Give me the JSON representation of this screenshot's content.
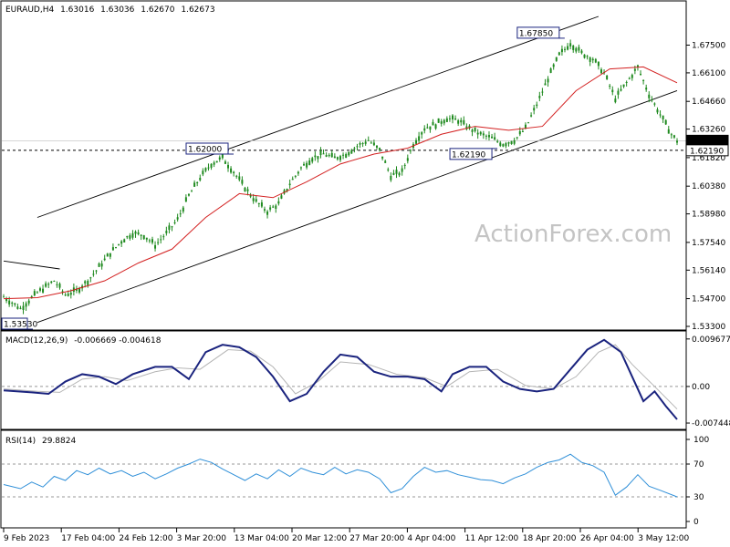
{
  "header": {
    "symbol": "EURAUD,H4",
    "open": "1.63016",
    "high": "1.63036",
    "low": "1.62670",
    "close": "1.62673"
  },
  "watermark": "ActionForex.com",
  "colors": {
    "candle": "#1f8a1f",
    "ma": "#d32020",
    "macd": "#1a237e",
    "macd_signal": "#b5b5b5",
    "rsi": "#2f8fd8",
    "channel": "#000000",
    "price_box": "#1a237e"
  },
  "chart_data": [
    {
      "type": "candlestick",
      "series_name": "EURAUD,H4",
      "ylim": [
        1.533,
        1.6895
      ],
      "y_ticks": [
        "1.67500",
        "1.66100",
        "1.64660",
        "1.63260",
        "1.61820",
        "1.60380",
        "1.58980",
        "1.57540",
        "1.56140",
        "1.54700",
        "1.53300"
      ],
      "x_ticks": [
        "9 Feb 2023",
        "17 Feb 04:00",
        "24 Feb 12:00",
        "3 Mar 20:00",
        "13 Mar 04:00",
        "20 Mar 12:00",
        "27 Mar 20:00",
        "4 Apr 04:00",
        "11 Apr 12:00",
        "18 Apr 20:00",
        "26 Apr 04:00",
        "3 May 12:00"
      ],
      "current_price": "1.62673",
      "support_line": "1.62190",
      "annotations": [
        "1.67850",
        "1.62000",
        "1.62190",
        "1.53530"
      ],
      "close_path": [
        {
          "x": 0,
          "y": 1.548
        },
        {
          "x": 3,
          "y": 1.542
        },
        {
          "x": 6,
          "y": 1.55
        },
        {
          "x": 9,
          "y": 1.556
        },
        {
          "x": 11,
          "y": 1.549
        },
        {
          "x": 13,
          "y": 1.551
        },
        {
          "x": 15,
          "y": 1.556
        },
        {
          "x": 17,
          "y": 1.563
        },
        {
          "x": 19,
          "y": 1.57
        },
        {
          "x": 21,
          "y": 1.576
        },
        {
          "x": 23,
          "y": 1.58
        },
        {
          "x": 25,
          "y": 1.579
        },
        {
          "x": 27,
          "y": 1.574
        },
        {
          "x": 29,
          "y": 1.58
        },
        {
          "x": 31,
          "y": 1.587
        },
        {
          "x": 33,
          "y": 1.599
        },
        {
          "x": 35,
          "y": 1.608
        },
        {
          "x": 37,
          "y": 1.615
        },
        {
          "x": 39,
          "y": 1.618
        },
        {
          "x": 41,
          "y": 1.611
        },
        {
          "x": 43,
          "y": 1.603
        },
        {
          "x": 45,
          "y": 1.596
        },
        {
          "x": 47,
          "y": 1.591
        },
        {
          "x": 49,
          "y": 1.595
        },
        {
          "x": 51,
          "y": 1.605
        },
        {
          "x": 53,
          "y": 1.613
        },
        {
          "x": 55,
          "y": 1.618
        },
        {
          "x": 57,
          "y": 1.62
        },
        {
          "x": 59,
          "y": 1.618
        },
        {
          "x": 61,
          "y": 1.62
        },
        {
          "x": 63,
          "y": 1.624
        },
        {
          "x": 65,
          "y": 1.627
        },
        {
          "x": 67,
          "y": 1.622
        },
        {
          "x": 69,
          "y": 1.609
        },
        {
          "x": 71,
          "y": 1.611
        },
        {
          "x": 73,
          "y": 1.625
        },
        {
          "x": 75,
          "y": 1.633
        },
        {
          "x": 77,
          "y": 1.635
        },
        {
          "x": 79,
          "y": 1.638
        },
        {
          "x": 81,
          "y": 1.637
        },
        {
          "x": 83,
          "y": 1.633
        },
        {
          "x": 85,
          "y": 1.63
        },
        {
          "x": 87,
          "y": 1.628
        },
        {
          "x": 89,
          "y": 1.625
        },
        {
          "x": 91,
          "y": 1.627
        },
        {
          "x": 93,
          "y": 1.633
        },
        {
          "x": 95,
          "y": 1.645
        },
        {
          "x": 97,
          "y": 1.658
        },
        {
          "x": 99,
          "y": 1.67
        },
        {
          "x": 101,
          "y": 1.676
        },
        {
          "x": 103,
          "y": 1.671
        },
        {
          "x": 105,
          "y": 1.668
        },
        {
          "x": 107,
          "y": 1.661
        },
        {
          "x": 109,
          "y": 1.648
        },
        {
          "x": 111,
          "y": 1.656
        },
        {
          "x": 113,
          "y": 1.664
        },
        {
          "x": 115,
          "y": 1.65
        },
        {
          "x": 117,
          "y": 1.64
        },
        {
          "x": 119,
          "y": 1.63
        },
        {
          "x": 120,
          "y": 1.6267
        }
      ],
      "ma_path": [
        {
          "x": 0,
          "y": 1.547
        },
        {
          "x": 6,
          "y": 1.5475
        },
        {
          "x": 12,
          "y": 1.551
        },
        {
          "x": 18,
          "y": 1.556
        },
        {
          "x": 24,
          "y": 1.565
        },
        {
          "x": 30,
          "y": 1.572
        },
        {
          "x": 36,
          "y": 1.588
        },
        {
          "x": 42,
          "y": 1.6
        },
        {
          "x": 48,
          "y": 1.598
        },
        {
          "x": 54,
          "y": 1.606
        },
        {
          "x": 60,
          "y": 1.615
        },
        {
          "x": 66,
          "y": 1.62
        },
        {
          "x": 72,
          "y": 1.623
        },
        {
          "x": 78,
          "y": 1.63
        },
        {
          "x": 84,
          "y": 1.634
        },
        {
          "x": 90,
          "y": 1.632
        },
        {
          "x": 96,
          "y": 1.634
        },
        {
          "x": 102,
          "y": 1.652
        },
        {
          "x": 108,
          "y": 1.663
        },
        {
          "x": 114,
          "y": 1.664
        },
        {
          "x": 120,
          "y": 1.656
        }
      ],
      "channel_upper": [
        {
          "x": 6,
          "y": 1.588
        },
        {
          "x": 106,
          "y": 1.6895
        }
      ],
      "channel_lower": [
        {
          "x": 6,
          "y": 1.535
        },
        {
          "x": 120,
          "y": 1.652
        }
      ],
      "trendline_left": [
        {
          "x": 0,
          "y": 1.566
        },
        {
          "x": 10,
          "y": 1.562
        }
      ]
    },
    {
      "type": "line",
      "indicator": "MACD(12,26,9)",
      "values_label": "-0.006669 -0.004618",
      "ylim": [
        -0.008,
        0.0102
      ],
      "y_ticks": [
        "0.009677",
        "0.00",
        "-0.007448"
      ],
      "series": [
        {
          "name": "MACD(12,26,9)",
          "points": [
            {
              "x": 0,
              "y": -0.0008
            },
            {
              "x": 5,
              "y": -0.0012
            },
            {
              "x": 8,
              "y": -0.0015
            },
            {
              "x": 11,
              "y": 0.001
            },
            {
              "x": 14,
              "y": 0.0025
            },
            {
              "x": 17,
              "y": 0.002
            },
            {
              "x": 20,
              "y": 0.0005
            },
            {
              "x": 23,
              "y": 0.0025
            },
            {
              "x": 27,
              "y": 0.004
            },
            {
              "x": 30,
              "y": 0.004
            },
            {
              "x": 33,
              "y": 0.0015
            },
            {
              "x": 36,
              "y": 0.007
            },
            {
              "x": 39,
              "y": 0.0085
            },
            {
              "x": 42,
              "y": 0.008
            },
            {
              "x": 45,
              "y": 0.006
            },
            {
              "x": 48,
              "y": 0.002
            },
            {
              "x": 51,
              "y": -0.003
            },
            {
              "x": 54,
              "y": -0.0015
            },
            {
              "x": 57,
              "y": 0.003
            },
            {
              "x": 60,
              "y": 0.0065
            },
            {
              "x": 63,
              "y": 0.006
            },
            {
              "x": 66,
              "y": 0.003
            },
            {
              "x": 69,
              "y": 0.002
            },
            {
              "x": 72,
              "y": 0.002
            },
            {
              "x": 75,
              "y": 0.0015
            },
            {
              "x": 78,
              "y": -0.001
            },
            {
              "x": 80,
              "y": 0.0025
            },
            {
              "x": 83,
              "y": 0.004
            },
            {
              "x": 86,
              "y": 0.004
            },
            {
              "x": 89,
              "y": 0.001
            },
            {
              "x": 92,
              "y": -0.0005
            },
            {
              "x": 95,
              "y": -0.001
            },
            {
              "x": 98,
              "y": -0.0005
            },
            {
              "x": 101,
              "y": 0.0035
            },
            {
              "x": 104,
              "y": 0.0075
            },
            {
              "x": 107,
              "y": 0.0095
            },
            {
              "x": 110,
              "y": 0.007
            },
            {
              "x": 112,
              "y": 0.002
            },
            {
              "x": 114,
              "y": -0.003
            },
            {
              "x": 116,
              "y": -0.001
            },
            {
              "x": 118,
              "y": -0.004
            },
            {
              "x": 120,
              "y": -0.0067
            }
          ]
        },
        {
          "name": "signal",
          "points": [
            {
              "x": 0,
              "y": -0.0005
            },
            {
              "x": 6,
              "y": -0.001
            },
            {
              "x": 10,
              "y": -0.0012
            },
            {
              "x": 14,
              "y": 0.0015
            },
            {
              "x": 18,
              "y": 0.002
            },
            {
              "x": 22,
              "y": 0.0012
            },
            {
              "x": 27,
              "y": 0.003
            },
            {
              "x": 31,
              "y": 0.0038
            },
            {
              "x": 35,
              "y": 0.0035
            },
            {
              "x": 40,
              "y": 0.0075
            },
            {
              "x": 44,
              "y": 0.0072
            },
            {
              "x": 48,
              "y": 0.004
            },
            {
              "x": 52,
              "y": -0.0015
            },
            {
              "x": 56,
              "y": 0.001
            },
            {
              "x": 60,
              "y": 0.005
            },
            {
              "x": 65,
              "y": 0.0045
            },
            {
              "x": 70,
              "y": 0.0025
            },
            {
              "x": 75,
              "y": 0.0018
            },
            {
              "x": 79,
              "y": 0.0
            },
            {
              "x": 83,
              "y": 0.003
            },
            {
              "x": 88,
              "y": 0.0035
            },
            {
              "x": 93,
              "y": 0.0002
            },
            {
              "x": 98,
              "y": -0.0005
            },
            {
              "x": 102,
              "y": 0.002
            },
            {
              "x": 106,
              "y": 0.007
            },
            {
              "x": 109,
              "y": 0.0085
            },
            {
              "x": 112,
              "y": 0.0045
            },
            {
              "x": 116,
              "y": 0.0
            },
            {
              "x": 120,
              "y": -0.0046
            }
          ]
        }
      ]
    },
    {
      "type": "line",
      "indicator": "RSI(14)",
      "value_label": "29.8824",
      "ylim": [
        0,
        100
      ],
      "y_ticks": [
        "100",
        "70",
        "30",
        "0"
      ],
      "levels": [
        70,
        30
      ],
      "series": [
        {
          "name": "RSI(14)",
          "points": [
            {
              "x": 0,
              "y": 45
            },
            {
              "x": 3,
              "y": 40
            },
            {
              "x": 5,
              "y": 48
            },
            {
              "x": 7,
              "y": 42
            },
            {
              "x": 9,
              "y": 55
            },
            {
              "x": 11,
              "y": 50
            },
            {
              "x": 13,
              "y": 62
            },
            {
              "x": 15,
              "y": 57
            },
            {
              "x": 17,
              "y": 65
            },
            {
              "x": 19,
              "y": 58
            },
            {
              "x": 21,
              "y": 62
            },
            {
              "x": 23,
              "y": 55
            },
            {
              "x": 25,
              "y": 60
            },
            {
              "x": 27,
              "y": 52
            },
            {
              "x": 29,
              "y": 58
            },
            {
              "x": 31,
              "y": 65
            },
            {
              "x": 33,
              "y": 70
            },
            {
              "x": 35,
              "y": 76
            },
            {
              "x": 37,
              "y": 72
            },
            {
              "x": 39,
              "y": 64
            },
            {
              "x": 41,
              "y": 57
            },
            {
              "x": 43,
              "y": 50
            },
            {
              "x": 45,
              "y": 58
            },
            {
              "x": 47,
              "y": 52
            },
            {
              "x": 49,
              "y": 63
            },
            {
              "x": 51,
              "y": 55
            },
            {
              "x": 53,
              "y": 65
            },
            {
              "x": 55,
              "y": 60
            },
            {
              "x": 57,
              "y": 57
            },
            {
              "x": 59,
              "y": 66
            },
            {
              "x": 61,
              "y": 58
            },
            {
              "x": 63,
              "y": 63
            },
            {
              "x": 65,
              "y": 60
            },
            {
              "x": 67,
              "y": 52
            },
            {
              "x": 69,
              "y": 35
            },
            {
              "x": 71,
              "y": 40
            },
            {
              "x": 73,
              "y": 55
            },
            {
              "x": 75,
              "y": 66
            },
            {
              "x": 77,
              "y": 60
            },
            {
              "x": 79,
              "y": 62
            },
            {
              "x": 81,
              "y": 57
            },
            {
              "x": 83,
              "y": 54
            },
            {
              "x": 85,
              "y": 51
            },
            {
              "x": 87,
              "y": 50
            },
            {
              "x": 89,
              "y": 46
            },
            {
              "x": 91,
              "y": 53
            },
            {
              "x": 93,
              "y": 58
            },
            {
              "x": 95,
              "y": 66
            },
            {
              "x": 97,
              "y": 72
            },
            {
              "x": 99,
              "y": 75
            },
            {
              "x": 101,
              "y": 82
            },
            {
              "x": 103,
              "y": 72
            },
            {
              "x": 105,
              "y": 68
            },
            {
              "x": 107,
              "y": 60
            },
            {
              "x": 109,
              "y": 32
            },
            {
              "x": 111,
              "y": 42
            },
            {
              "x": 113,
              "y": 57
            },
            {
              "x": 115,
              "y": 43
            },
            {
              "x": 117,
              "y": 38
            },
            {
              "x": 120,
              "y": 30
            }
          ]
        }
      ]
    }
  ]
}
